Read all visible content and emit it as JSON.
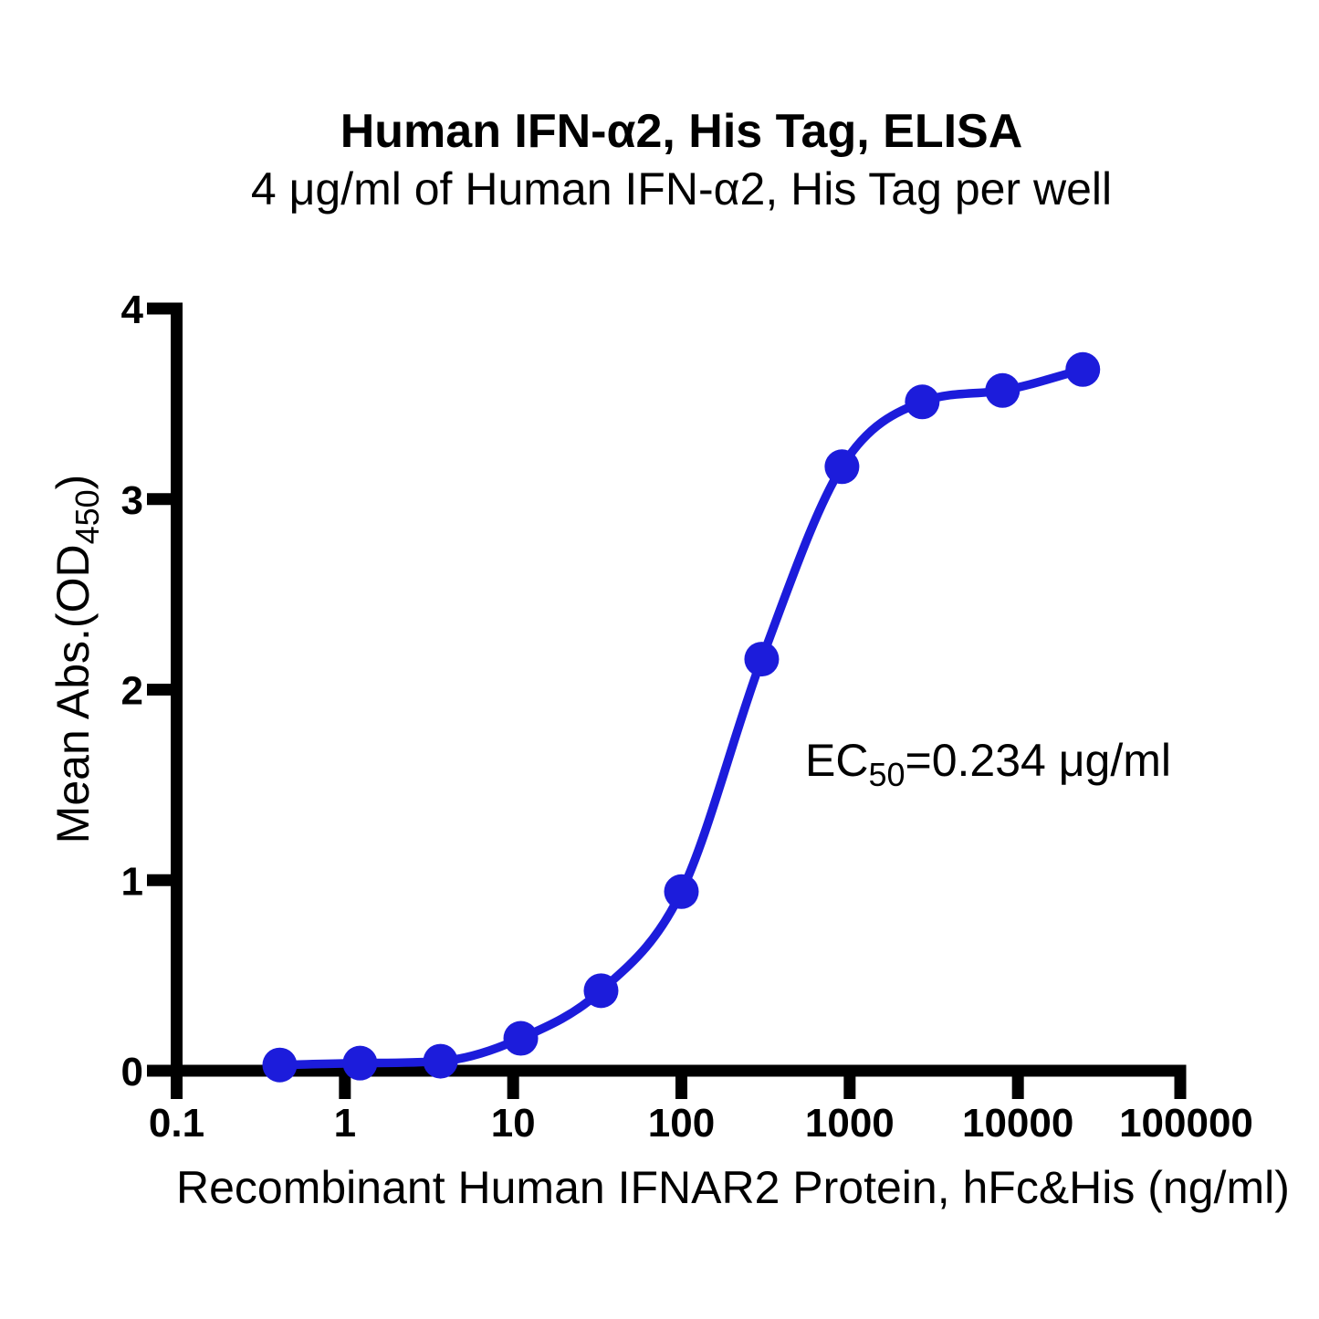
{
  "figure": {
    "title": "Human IFN-α2, His Tag, ELISA",
    "subtitle": "4 μg/ml of Human IFN-α2, His Tag per well"
  },
  "axes": {
    "x": {
      "label": "Recombinant Human IFNAR2 Protein, hFc&His (ng/ml)",
      "scale": "log10",
      "ticks": [
        {
          "v": 0.1,
          "label": "0.1"
        },
        {
          "v": 1,
          "label": "1"
        },
        {
          "v": 10,
          "label": "10"
        },
        {
          "v": 100,
          "label": "100"
        },
        {
          "v": 1000,
          "label": "1000"
        },
        {
          "v": 10000,
          "label": "10000"
        },
        {
          "v": 100000,
          "label": "100000"
        }
      ]
    },
    "y": {
      "label_pre": "Mean Abs.(OD",
      "label_sub": "450",
      "label_post": ")",
      "ticks": [
        {
          "v": 0,
          "label": "0"
        },
        {
          "v": 1,
          "label": "1"
        },
        {
          "v": 2,
          "label": "2"
        },
        {
          "v": 3,
          "label": "3"
        },
        {
          "v": 4,
          "label": "4"
        }
      ]
    }
  },
  "annotation": {
    "pre": "EC",
    "sub": "50",
    "post": "=0.234 μg/ml"
  },
  "colors": {
    "series": "#1c1cdb",
    "axis": "#000000",
    "text": "#000000",
    "background": "#ffffff"
  },
  "chart_data": {
    "type": "scatter",
    "title": "Human IFN-α2, His Tag, ELISA",
    "subtitle": "4 μg/ml of Human IFN-α2, His Tag per well",
    "xlabel": "Recombinant Human IFNAR2 Protein, hFc&His (ng/ml)",
    "ylabel": "Mean Abs.(OD450)",
    "annotation": "EC50=0.234 μg/ml",
    "x_scale": "log10",
    "xlim": [
      0.1,
      100000
    ],
    "ylim": [
      0,
      4
    ],
    "x_ticks": [
      0.1,
      1,
      10,
      100,
      1000,
      10000,
      100000
    ],
    "y_ticks": [
      0,
      1,
      2,
      3,
      4
    ],
    "grid": false,
    "legend": false,
    "curve": "sigmoid through points",
    "series": [
      {
        "marker": "circle",
        "color": "#1c1cdb",
        "x_ng_ml": [
          0.41,
          1.23,
          3.7,
          11.1,
          33.3,
          100,
          300,
          900,
          2700,
          8100,
          24300
        ],
        "y_od450": [
          0.03,
          0.04,
          0.05,
          0.17,
          0.42,
          0.94,
          2.16,
          3.17,
          3.51,
          3.57,
          3.68
        ]
      }
    ]
  }
}
